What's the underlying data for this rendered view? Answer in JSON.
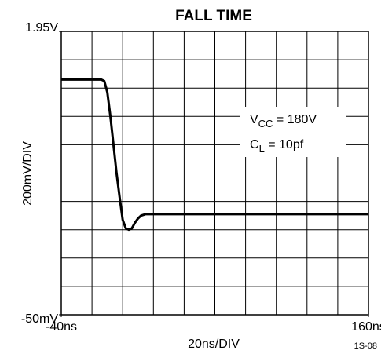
{
  "chart_data": {
    "type": "line",
    "title": "FALL TIME",
    "x_label": "20ns/DIV",
    "y_label": "200mV/DIV",
    "figure_code": "1S-08",
    "xlim": [
      -40,
      160
    ],
    "ylim": [
      -0.05,
      1.95
    ],
    "xticks": [
      {
        "value": -40,
        "label": "-40ns"
      },
      {
        "value": 160,
        "label": "160ns"
      }
    ],
    "yticks": [
      {
        "value": -0.05,
        "label": "-50mV"
      },
      {
        "value": 1.95,
        "label": "1.95V"
      }
    ],
    "xgrid": [
      -40,
      -20,
      0,
      20,
      40,
      60,
      80,
      100,
      120,
      140,
      160
    ],
    "ygrid": [
      -0.05,
      0.15,
      0.35,
      0.55,
      0.75,
      0.95,
      1.15,
      1.35,
      1.55,
      1.75,
      1.95
    ],
    "grid": true,
    "annotations": [
      {
        "text": "V",
        "sub": "CC",
        "rest": " = 180V"
      },
      {
        "text": "C",
        "sub": "L",
        "rest": " = 10pf"
      }
    ],
    "series": [
      {
        "color": "#000000",
        "x": [
          -40,
          -14,
          -12,
          -10,
          -8,
          -6,
          -4,
          -2,
          0,
          2,
          4,
          6,
          8,
          10,
          12,
          15,
          20,
          30,
          60,
          100,
          160
        ],
        "values": [
          1.61,
          1.61,
          1.6,
          1.52,
          1.35,
          1.15,
          0.95,
          0.78,
          0.62,
          0.56,
          0.55,
          0.56,
          0.6,
          0.63,
          0.65,
          0.66,
          0.66,
          0.66,
          0.66,
          0.66,
          0.66
        ]
      }
    ]
  }
}
